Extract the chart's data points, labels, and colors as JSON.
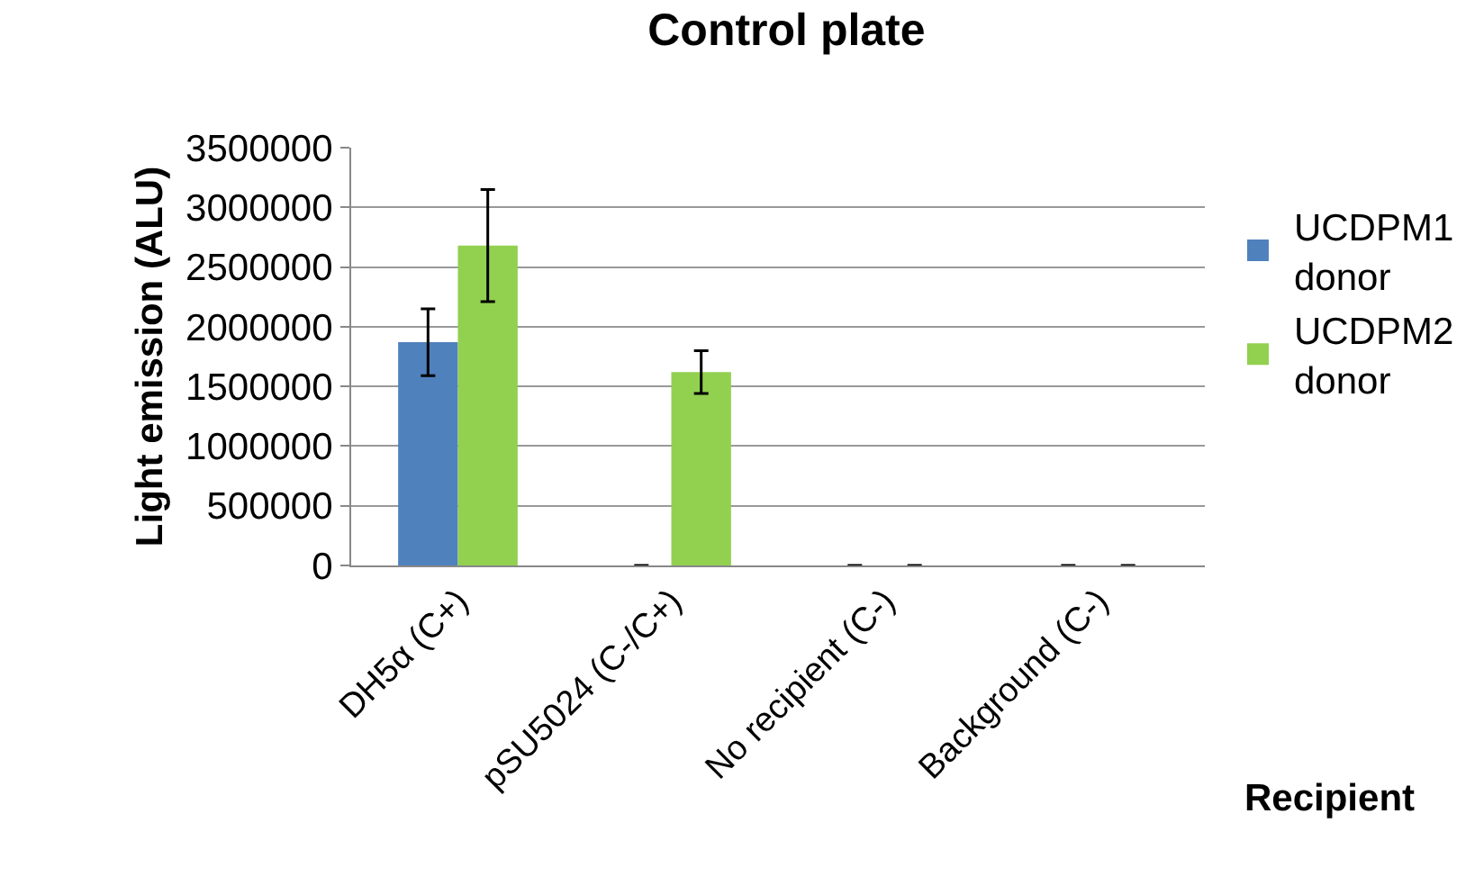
{
  "chart_data": {
    "type": "bar",
    "title": "Control plate",
    "xlabel": "Recipient",
    "ylabel": "Light emission (ALU)",
    "categories": [
      "DH5α (C+)",
      "pSU5024 (C-/C+)",
      "No recipient (C-)",
      "Background (C-)"
    ],
    "series": [
      {
        "name": "UCDPM1 donor",
        "color": "#4f81bd",
        "values": [
          1870000,
          0,
          0,
          0
        ],
        "errors": [
          280000,
          null,
          null,
          null
        ]
      },
      {
        "name": "UCDPM2 donor",
        "color": "#92d050",
        "values": [
          2680000,
          1620000,
          0,
          0
        ],
        "errors": [
          470000,
          180000,
          null,
          null
        ]
      }
    ],
    "ylim": [
      0,
      3500000
    ],
    "yticks": [
      0,
      500000,
      1000000,
      1500000,
      2000000,
      2500000,
      3000000,
      3500000
    ],
    "grid": "y",
    "legend": "right"
  }
}
